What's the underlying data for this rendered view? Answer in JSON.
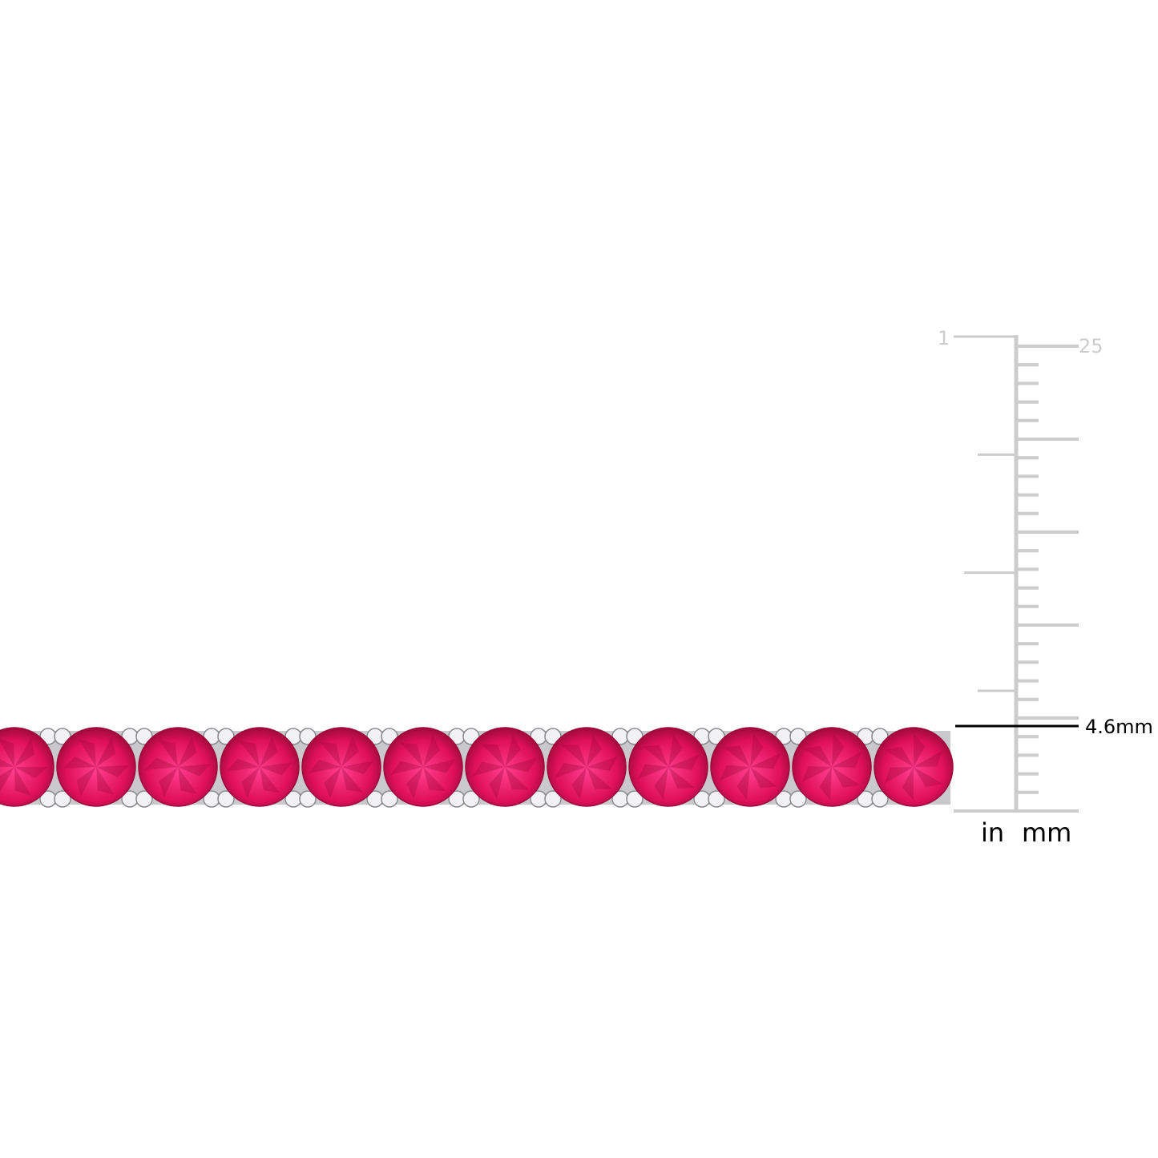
{
  "product": {
    "gem_count": 12,
    "gem_color": "#e0105a",
    "gem_dark": "#9e0a3a",
    "gem_highlight": "#ff3f8f",
    "metal_color": "#d9d9dc"
  },
  "ruler": {
    "color": "#cccccc",
    "inch_label_top": "1",
    "mm_label_top": "25",
    "unit_in": "in",
    "unit_mm": "mm",
    "mm_ticks": 25,
    "measure_label": "4.6mm",
    "measure_color": "#000000"
  }
}
